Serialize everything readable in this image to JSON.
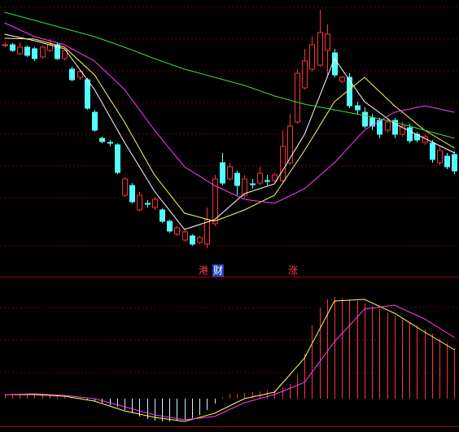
{
  "chart_data": [
    {
      "type": "candlestick",
      "x": [
        0,
        1,
        2,
        3,
        4,
        5,
        6,
        7,
        8,
        9,
        10,
        11,
        12,
        13,
        14,
        15,
        16,
        17,
        18,
        19,
        20,
        21,
        22,
        23,
        24,
        25,
        26,
        27,
        28,
        29,
        30,
        31,
        32,
        33,
        34,
        35,
        36,
        37,
        38,
        39,
        40,
        41,
        42,
        43,
        44,
        45,
        46,
        47,
        48,
        49,
        50,
        51,
        52,
        53,
        54,
        55,
        56,
        57,
        58,
        59,
        60
      ],
      "xlim": [
        -0.6,
        60.6
      ],
      "ylim": [
        0,
        340
      ],
      "up_color": "#ff3232",
      "down_color": "#54ffff",
      "open": [
        285,
        285,
        274,
        282,
        280,
        270,
        278,
        285,
        268,
        255,
        245,
        242,
        202,
        170,
        165,
        162,
        100,
        112,
        82,
        90,
        85,
        82,
        68,
        52,
        45,
        50,
        42,
        40,
        65,
        140,
        120,
        127,
        100,
        114,
        115,
        118,
        118,
        118,
        140,
        190,
        232,
        255,
        260,
        278,
        275,
        240,
        245,
        210,
        202,
        195,
        192,
        180,
        192,
        175,
        183,
        175,
        165,
        164,
        140,
        148,
        150
      ],
      "high": [
        288,
        287,
        288,
        284,
        282,
        284,
        292,
        288,
        280,
        258,
        254,
        244,
        205,
        172,
        168,
        164,
        122,
        115,
        104,
        94,
        98,
        84,
        70,
        62,
        58,
        52,
        50,
        85,
        125,
        152,
        140,
        130,
        125,
        120,
        135,
        125,
        128,
        180,
        200,
        255,
        280,
        295,
        328,
        310,
        280,
        247,
        250,
        215,
        208,
        200,
        195,
        195,
        195,
        190,
        188,
        178,
        175,
        168,
        160,
        152,
        154
      ],
      "low": [
        282,
        276,
        272,
        270,
        265,
        268,
        276,
        266,
        266,
        240,
        242,
        205,
        178,
        164,
        160,
        126,
        98,
        90,
        80,
        85,
        82,
        66,
        54,
        50,
        43,
        38,
        40,
        35,
        62,
        112,
        118,
        100,
        97,
        108,
        112,
        112,
        116,
        116,
        138,
        188,
        230,
        252,
        258,
        245,
        245,
        238,
        207,
        200,
        182,
        180,
        170,
        177,
        170,
        172,
        164,
        165,
        162,
        140,
        137,
        132,
        126
      ],
      "close": [
        285,
        278,
        282,
        272,
        268,
        282,
        285,
        268,
        278,
        242,
        252,
        207,
        180,
        166,
        164,
        128,
        120,
        92,
        100,
        89,
        95,
        68,
        56,
        60,
        55,
        40,
        48,
        70,
        120,
        115,
        135,
        112,
        120,
        113,
        127,
        117,
        125,
        160,
        185,
        250,
        265,
        285,
        300,
        298,
        248,
        245,
        210,
        205,
        185,
        185,
        175,
        190,
        175,
        185,
        167,
        168,
        172,
        144,
        155,
        135,
        130
      ],
      "series": [
        {
          "color": "#ffffff",
          "x": [
            0,
            4,
            8,
            12,
            16,
            20,
            24,
            28,
            32,
            36,
            40,
            44,
            48,
            52,
            56,
            60
          ],
          "values": [
            298,
            290,
            280,
            230,
            165,
            105,
            58,
            70,
            102,
            114,
            175,
            268,
            215,
            188,
            170,
            152
          ]
        },
        {
          "color": "#ffff54",
          "x": [
            0,
            4,
            8,
            12,
            16,
            20,
            24,
            28,
            32,
            36,
            40,
            44,
            48,
            52,
            56,
            60
          ],
          "values": [
            293,
            292,
            282,
            248,
            190,
            125,
            78,
            68,
            82,
            100,
            155,
            215,
            245,
            210,
            180,
            158
          ]
        },
        {
          "color": "#ff3cff",
          "x": [
            0,
            4,
            8,
            12,
            16,
            20,
            24,
            28,
            32,
            36,
            40,
            44,
            48,
            52,
            56,
            60
          ],
          "values": [
            312,
            295,
            285,
            265,
            230,
            180,
            135,
            112,
            95,
            90,
            108,
            140,
            180,
            202,
            210,
            202
          ]
        },
        {
          "color": "#3cdc3c",
          "x": [
            0,
            4,
            8,
            12,
            16,
            20,
            24,
            28,
            32,
            36,
            40,
            44,
            48,
            52,
            56,
            60
          ],
          "values": [
            325,
            315,
            305,
            295,
            282,
            268,
            255,
            245,
            235,
            222,
            212,
            205,
            198,
            190,
            180,
            170
          ]
        }
      ],
      "annotations": [
        "港",
        "财",
        "涨"
      ]
    },
    {
      "type": "macd",
      "x": [
        0,
        1,
        2,
        3,
        4,
        5,
        6,
        7,
        8,
        9,
        10,
        11,
        12,
        13,
        14,
        15,
        16,
        17,
        18,
        19,
        20,
        21,
        22,
        23,
        24,
        25,
        26,
        27,
        28,
        29,
        30,
        31,
        32,
        33,
        34,
        35,
        36,
        37,
        38,
        39,
        40,
        41,
        42,
        43,
        44,
        45,
        46,
        47,
        48,
        49,
        50,
        51,
        52,
        53,
        54,
        55,
        56,
        57,
        58,
        59,
        60
      ],
      "xlim": [
        -0.6,
        60.6
      ],
      "ylim": [
        -35,
        145
      ],
      "up_color": "#ff3232",
      "down_color": "#c8ffff",
      "values": [
        6,
        6,
        6,
        5,
        5,
        5,
        4,
        4,
        3,
        2,
        1,
        -1,
        -3,
        -5,
        -8,
        -10,
        -14,
        -18,
        -22,
        -25,
        -27,
        -28,
        -28,
        -27,
        -26,
        -24,
        -20,
        -14,
        -6,
        2,
        6,
        6,
        7,
        8,
        9,
        10,
        11,
        13,
        18,
        30,
        55,
        90,
        112,
        122,
        125,
        124,
        122,
        120,
        117,
        114,
        110,
        106,
        102,
        98,
        94,
        90,
        85,
        80,
        74,
        68,
        62
      ],
      "series": [
        {
          "color": "#ffff54",
          "x": [
            0,
            4,
            8,
            12,
            16,
            20,
            24,
            28,
            32,
            36,
            40,
            44,
            48,
            52,
            56,
            60
          ],
          "values": [
            5,
            5,
            3,
            -3,
            -15,
            -23,
            -28,
            -18,
            0,
            8,
            50,
            120,
            122,
            105,
            82,
            60
          ]
        },
        {
          "color": "#ff3cff",
          "x": [
            0,
            4,
            8,
            12,
            16,
            20,
            24,
            28,
            32,
            36,
            40,
            44,
            48,
            52,
            56,
            60
          ],
          "values": [
            5,
            6,
            4,
            0,
            -10,
            -20,
            -26,
            -22,
            -5,
            5,
            20,
            70,
            110,
            115,
            98,
            75
          ]
        }
      ]
    }
  ]
}
